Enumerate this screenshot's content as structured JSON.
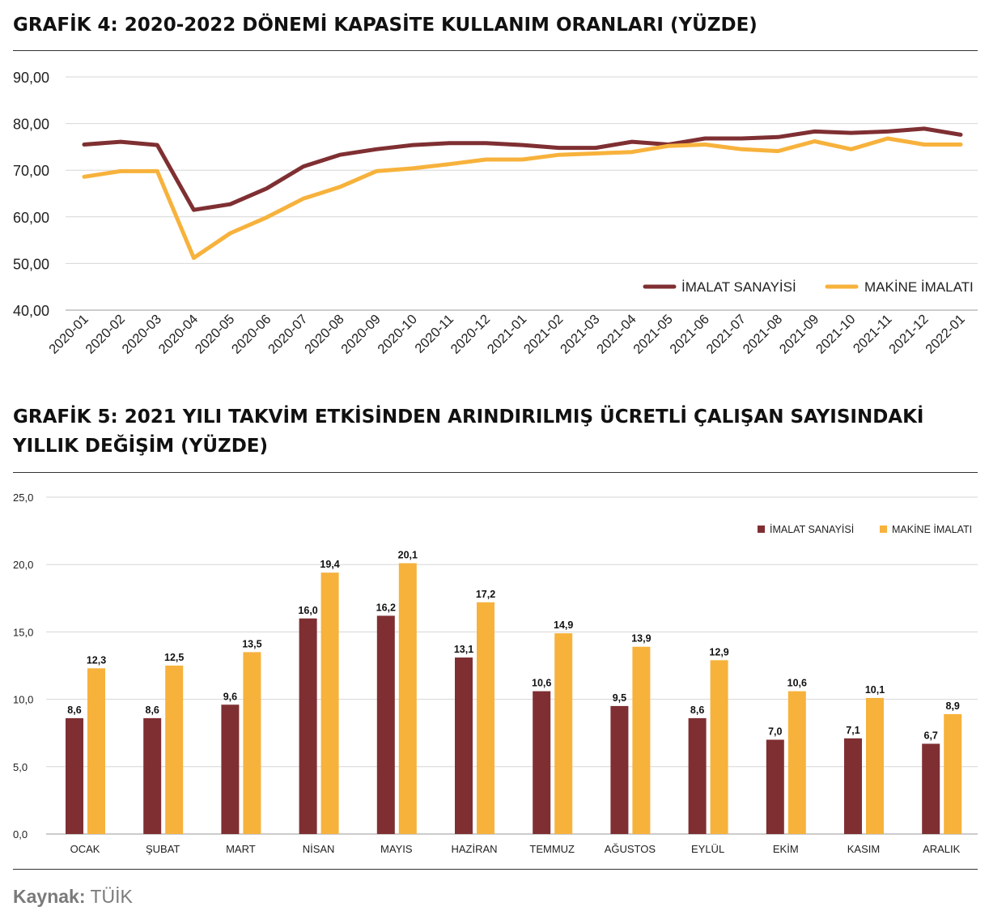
{
  "colors": {
    "imalat": "#7f2f32",
    "makine": "#f7b23c",
    "grid": "#d6d6d6",
    "axis": "#555555"
  },
  "chart_data": [
    {
      "type": "line",
      "title": "GRAFİK 4: 2020-2022 DÖNEMİ KAPASİTE KULLANIM ORANLARI (YÜZDE)",
      "x": [
        "2020-01",
        "2020-02",
        "2020-03",
        "2020-04",
        "2020-05",
        "2020-06",
        "2020-07",
        "2020-08",
        "2020-09",
        "2020-10",
        "2020-11",
        "2020-12",
        "2021-01",
        "2021-02",
        "2021-03",
        "2021-04",
        "2021-05",
        "2021-06",
        "2021-07",
        "2021-08",
        "2021-09",
        "2021-10",
        "2021-11",
        "2021-12",
        "2022-01"
      ],
      "y_ticks": [
        "40,00",
        "50,00",
        "60,00",
        "70,00",
        "80,00",
        "90,00"
      ],
      "ylim": [
        40,
        90
      ],
      "grid": true,
      "legend_position": "bottom-right",
      "series": [
        {
          "name": "İMALAT SANAYİSİ",
          "color": "#7f2f32",
          "values": [
            75.5,
            76.1,
            75.4,
            61.5,
            62.7,
            66.1,
            70.8,
            73.3,
            74.5,
            75.4,
            75.8,
            75.8,
            75.4,
            74.8,
            74.8,
            76.1,
            75.5,
            76.8,
            76.8,
            77.1,
            78.3,
            78.0,
            78.3,
            78.9,
            77.6
          ]
        },
        {
          "name": "MAKİNE İMALATI",
          "color": "#f7b23c",
          "values": [
            68.6,
            69.8,
            69.8,
            51.2,
            56.5,
            59.9,
            63.9,
            66.4,
            69.8,
            70.4,
            71.3,
            72.3,
            72.3,
            73.3,
            73.6,
            73.9,
            75.2,
            75.5,
            74.5,
            74.1,
            76.2,
            74.5,
            76.8,
            75.5,
            75.5
          ]
        }
      ]
    },
    {
      "type": "bar",
      "title": "GRAFİK 5: 2021 YILI TAKVİM ETKİSİNDEN ARINDIRILMIŞ ÜCRETLİ ÇALIŞAN SAYISINDAKİ YILLIK DEĞİŞİM (YÜZDE)",
      "categories": [
        "OCAK",
        "ŞUBAT",
        "MART",
        "NİSAN",
        "MAYIS",
        "HAZİRAN",
        "TEMMUZ",
        "AĞUSTOS",
        "EYLÜL",
        "EKİM",
        "KASIM",
        "ARALIK"
      ],
      "y_ticks": [
        "0,0",
        "5,0",
        "10,0",
        "15,0",
        "20,0",
        "25,0"
      ],
      "ylim": [
        0,
        25
      ],
      "grid": true,
      "legend_position": "top-right",
      "series": [
        {
          "name": "İMALAT SANAYİSİ",
          "color": "#7f2f32",
          "values": [
            8.6,
            8.6,
            9.6,
            16.0,
            16.2,
            13.1,
            10.6,
            9.5,
            8.6,
            7.0,
            7.1,
            6.7
          ],
          "labels": [
            "8,6",
            "8,6",
            "9,6",
            "16,0",
            "16,2",
            "13,1",
            "10,6",
            "9,5",
            "8,6",
            "7,0",
            "7,1",
            "6,7"
          ]
        },
        {
          "name": "MAKİNE İMALATI",
          "color": "#f7b23c",
          "values": [
            12.3,
            12.5,
            13.5,
            19.4,
            20.1,
            17.2,
            14.9,
            13.9,
            12.9,
            10.6,
            10.1,
            8.9
          ],
          "labels": [
            "12,3",
            "12,5",
            "13,5",
            "19,4",
            "20,1",
            "17,2",
            "14,9",
            "13,9",
            "12,9",
            "10,6",
            "10,1",
            "8,9"
          ]
        }
      ]
    }
  ],
  "source": {
    "label": "Kaynak:",
    "value": "TÜİK"
  }
}
